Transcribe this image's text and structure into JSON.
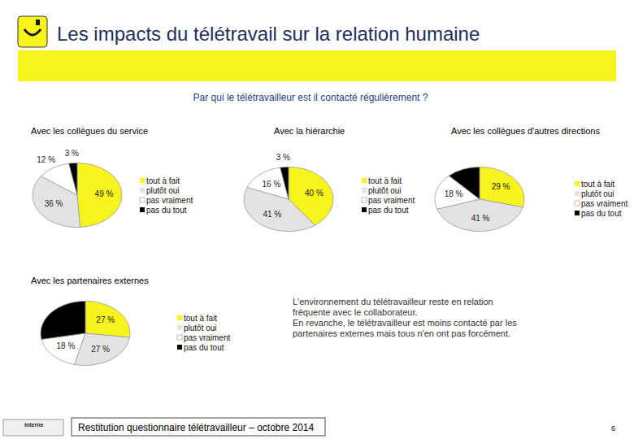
{
  "slide": {
    "title": "Les impacts du télétravail sur la relation humaine",
    "subtitle": "Par qui le télétravailleur est il contacté régulièrement ?",
    "note": [
      "L'environnement du télétravailleur reste en relation",
      "fréquente avec le collaborateur.",
      "En revanche, le télétravailleur est moins contacté par les",
      "partenaires externes mais tous n'en ont pas forcément."
    ],
    "footer": "Restitution questionnaire télétravailleur – octobre 2014",
    "page": "6",
    "badge": "interne"
  },
  "chart_data": [
    {
      "type": "pie",
      "title": "Avec les collègues du service",
      "categories": [
        "tout à fait",
        "plutôt oui",
        "pas vraiment",
        "pas du tout"
      ],
      "values": [
        49,
        36,
        12,
        3
      ],
      "value_labels": [
        "49 %",
        "36 %",
        "12 %",
        "3 %"
      ],
      "colors": [
        "#f7f31c",
        "#e3e3e3",
        "#ffffff",
        "#000000"
      ],
      "data_labels": true,
      "legend": "right"
    },
    {
      "type": "pie",
      "title": "Avec la hiérarchie",
      "categories": [
        "tout à fait",
        "plutôt oui",
        "pas vraiment",
        "pas du tout"
      ],
      "values": [
        40,
        41,
        16,
        3
      ],
      "value_labels": [
        "40 %",
        "41 %",
        "16 %",
        "3 %"
      ],
      "colors": [
        "#f7f31c",
        "#e3e3e3",
        "#ffffff",
        "#000000"
      ],
      "data_labels": true,
      "legend": "right"
    },
    {
      "type": "pie",
      "title": "Avec les collègues d'autres directions",
      "categories": [
        "tout à fait",
        "plutôt oui",
        "pas vraiment",
        "pas du tout"
      ],
      "values": [
        29,
        41,
        18,
        12
      ],
      "value_labels": [
        "29 %",
        "41 %",
        "18 %",
        null
      ],
      "colors": [
        "#f7f31c",
        "#e3e3e3",
        "#ffffff",
        "#000000"
      ],
      "data_labels": true,
      "legend": "right"
    },
    {
      "type": "pie",
      "title": "Avec les partenaires externes",
      "categories": [
        "tout à fait",
        "plutôt oui",
        "pas vraiment",
        "pas du tout"
      ],
      "values": [
        27,
        27,
        18,
        28
      ],
      "value_labels": [
        "27 %",
        "27 %",
        "18 %",
        null
      ],
      "colors": [
        "#f7f31c",
        "#e3e3e3",
        "#ffffff",
        "#000000"
      ],
      "data_labels": true,
      "legend": "right"
    }
  ]
}
